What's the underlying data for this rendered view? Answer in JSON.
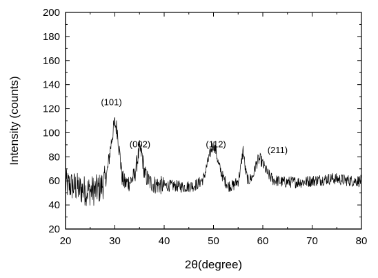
{
  "chart_data": {
    "type": "line",
    "title": "",
    "xlabel": "2θ(degree)",
    "ylabel": "Intensity (counts)",
    "xlim": [
      20,
      80
    ],
    "ylim": [
      20,
      200
    ],
    "x_ticks": [
      20,
      30,
      40,
      50,
      60,
      70,
      80
    ],
    "y_ticks": [
      20,
      40,
      60,
      80,
      100,
      120,
      140,
      160,
      180,
      200
    ],
    "grid": false,
    "legend": "none",
    "line_color": "#000000",
    "annotations": [
      {
        "label": "(101)",
        "x": 29.3,
        "y": 123
      },
      {
        "label": "(002)",
        "x": 35.1,
        "y": 88
      },
      {
        "label": "(112)",
        "x": 50.5,
        "y": 88
      },
      {
        "label": "(211)",
        "x": 63.0,
        "y": 83
      }
    ],
    "series": [
      {
        "x": [
          20,
          21,
          22,
          23,
          24,
          25,
          26,
          27,
          28,
          28.5,
          29,
          29.5,
          30,
          30.5,
          31,
          31.5,
          32,
          33,
          34,
          34.5,
          35,
          35.5,
          36,
          37,
          38,
          40,
          42,
          44,
          46,
          47,
          48,
          48.5,
          49,
          49.5,
          50,
          50.5,
          51,
          52,
          53,
          54,
          55,
          55.5,
          56,
          56.5,
          57,
          58,
          58.5,
          59,
          59.5,
          60,
          61,
          62,
          64,
          66,
          68,
          70,
          72,
          74,
          76,
          78,
          80
        ],
        "y": [
          57,
          56,
          55,
          53,
          52,
          52,
          52,
          54,
          60,
          68,
          84,
          98,
          108,
          102,
          82,
          62,
          58,
          59,
          64,
          76,
          86,
          82,
          66,
          59,
          57,
          56,
          56,
          55,
          56,
          58,
          62,
          70,
          78,
          85,
          90,
          85,
          74,
          62,
          56,
          56,
          60,
          70,
          86,
          68,
          60,
          64,
          72,
          77,
          78,
          74,
          66,
          61,
          59,
          59,
          59,
          60,
          61,
          62,
          61,
          60,
          60
        ]
      }
    ]
  }
}
